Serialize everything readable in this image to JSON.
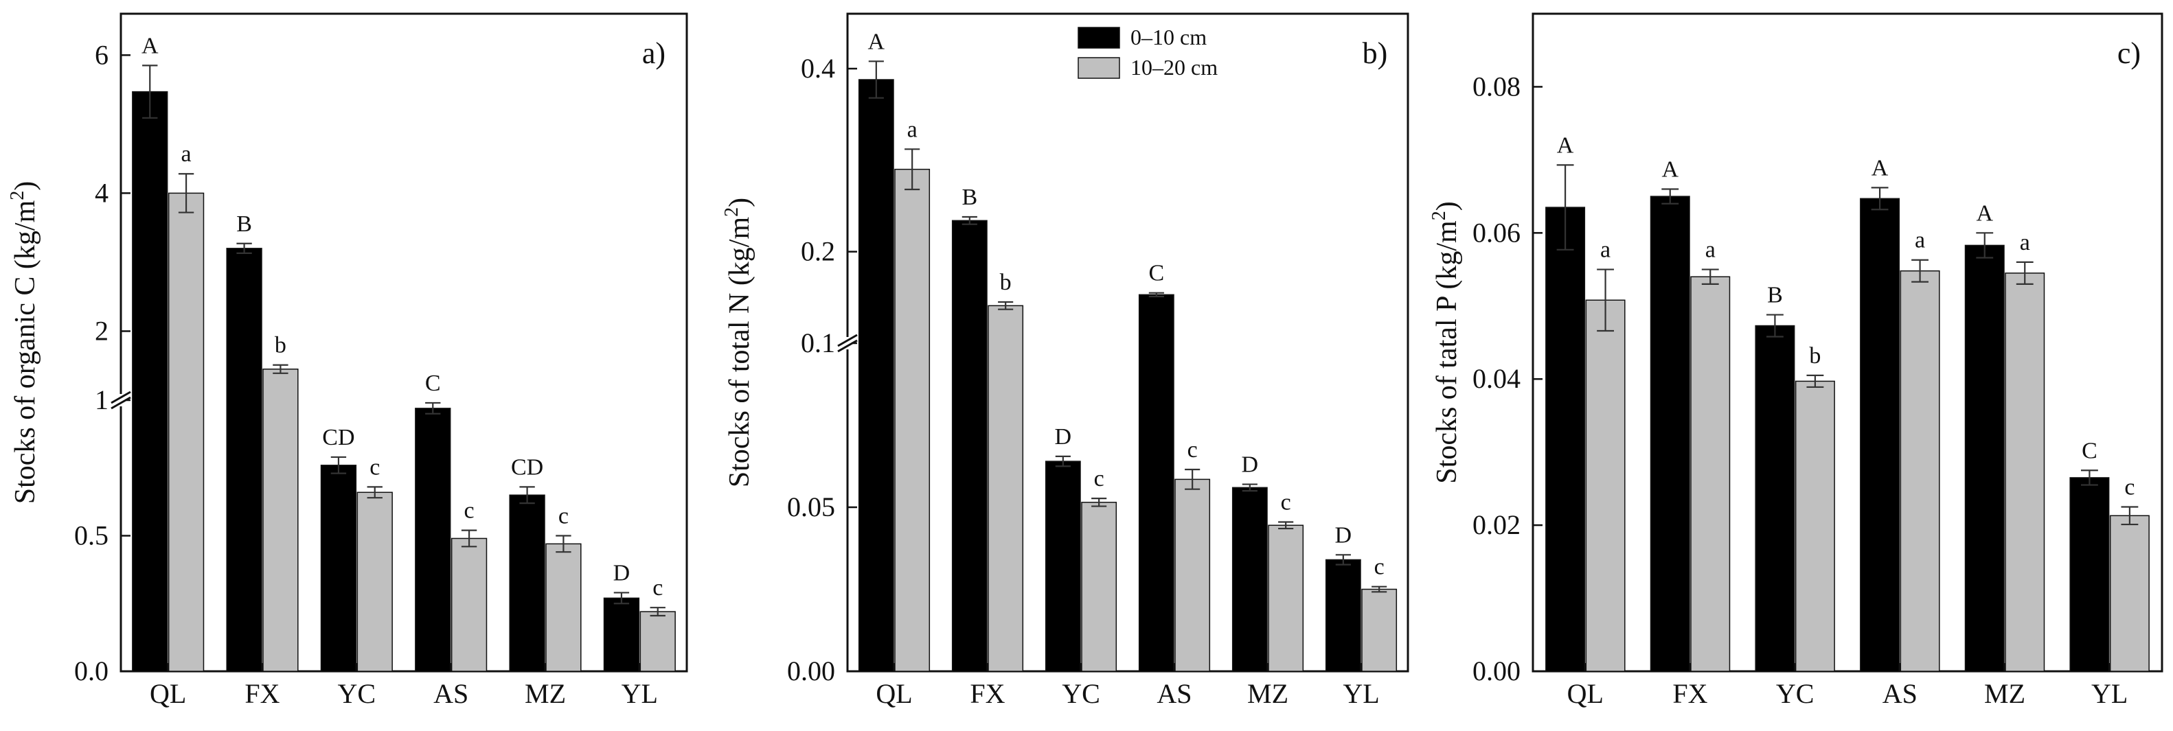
{
  "figure": {
    "legend": {
      "entries": [
        {
          "label": "0–10 cm",
          "color": "#000000"
        },
        {
          "label": "10–20 cm",
          "color": "#c0c0c0"
        }
      ]
    }
  },
  "chart_data": [
    {
      "type": "bar",
      "panel": "a)",
      "ylabel_main": "Stocks of organic C (kg/m",
      "ylabel_sup": "2",
      "ylabel_end": ")",
      "categories": [
        "QL",
        "FX",
        "YC",
        "AS",
        "MZ",
        "YL"
      ],
      "axis_break": true,
      "break_at": 1,
      "lower_range": [
        0,
        1
      ],
      "upper_range": [
        1,
        6.6
      ],
      "upper_start_value": 1,
      "yticks": [
        "0.0",
        "0.5",
        "1",
        "2",
        "4",
        "6"
      ],
      "ytick_values": [
        0,
        0.5,
        1,
        2,
        4,
        6
      ],
      "series": [
        {
          "name": "0–10 cm",
          "color": "#000000",
          "values": [
            5.47,
            3.2,
            0.76,
            0.97,
            0.65,
            0.27
          ],
          "errors": [
            0.38,
            0.07,
            0.03,
            0.02,
            0.03,
            0.02
          ],
          "letters": [
            "A",
            "B",
            "CD",
            "C",
            "CD",
            "D"
          ]
        },
        {
          "name": "10–20 cm",
          "color": "#c0c0c0",
          "values": [
            4.0,
            1.45,
            0.66,
            0.49,
            0.47,
            0.22
          ],
          "errors": [
            0.28,
            0.06,
            0.02,
            0.03,
            0.03,
            0.015
          ],
          "letters": [
            "a",
            "b",
            "c",
            "c",
            "c",
            "c"
          ]
        }
      ]
    },
    {
      "type": "bar",
      "panel": "b)",
      "ylabel_main": "Stocks of total N (kg/m",
      "ylabel_sup": "2",
      "ylabel_end": ")",
      "categories": [
        "QL",
        "FX",
        "YC",
        "AS",
        "MZ",
        "YL"
      ],
      "axis_break": true,
      "break_at": 0.1,
      "lower_range": [
        0,
        0.1
      ],
      "upper_range": [
        0.1,
        0.46
      ],
      "upper_start_value": 0.1,
      "yticks": [
        "0.00",
        "0.05",
        "0.1",
        "0.2",
        "0.4"
      ],
      "ytick_values": [
        0,
        0.05,
        0.1,
        0.2,
        0.4
      ],
      "series": [
        {
          "name": "0–10 cm",
          "color": "#000000",
          "values": [
            0.388,
            0.234,
            0.064,
            0.153,
            0.056,
            0.034
          ],
          "errors": [
            0.02,
            0.004,
            0.0015,
            0.002,
            0.001,
            0.0015
          ],
          "letters": [
            "A",
            "B",
            "D",
            "C",
            "D",
            "D"
          ]
        },
        {
          "name": "10–20 cm",
          "color": "#c0c0c0",
          "values": [
            0.29,
            0.141,
            0.0515,
            0.0585,
            0.0445,
            0.025
          ],
          "errors": [
            0.022,
            0.004,
            0.0012,
            0.003,
            0.001,
            0.0008
          ],
          "letters": [
            "a",
            "b",
            "c",
            "c",
            "c",
            "c"
          ]
        }
      ]
    },
    {
      "type": "bar",
      "panel": "c)",
      "ylabel_main": "Stocks of tatal P (kg/m",
      "ylabel_sup": "2",
      "ylabel_end": ")",
      "categories": [
        "QL",
        "FX",
        "YC",
        "AS",
        "MZ",
        "YL"
      ],
      "axis_break": false,
      "ylim": [
        0,
        0.09
      ],
      "yticks": [
        "0.00",
        "0.02",
        "0.04",
        "0.06",
        "0.08"
      ],
      "ytick_values": [
        0,
        0.02,
        0.04,
        0.06,
        0.08
      ],
      "series": [
        {
          "name": "0–10 cm",
          "color": "#000000",
          "values": [
            0.0635,
            0.065,
            0.0473,
            0.0647,
            0.0583,
            0.0265
          ],
          "errors": [
            0.0058,
            0.001,
            0.0015,
            0.0015,
            0.0017,
            0.001
          ],
          "letters": [
            "A",
            "A",
            "B",
            "A",
            "A",
            "C"
          ]
        },
        {
          "name": "10–20 cm",
          "color": "#c0c0c0",
          "values": [
            0.0508,
            0.054,
            0.0397,
            0.0548,
            0.0545,
            0.0213
          ],
          "errors": [
            0.0042,
            0.001,
            0.0008,
            0.0015,
            0.0015,
            0.0012
          ],
          "letters": [
            "a",
            "a",
            "b",
            "a",
            "a",
            "c"
          ]
        }
      ]
    }
  ]
}
